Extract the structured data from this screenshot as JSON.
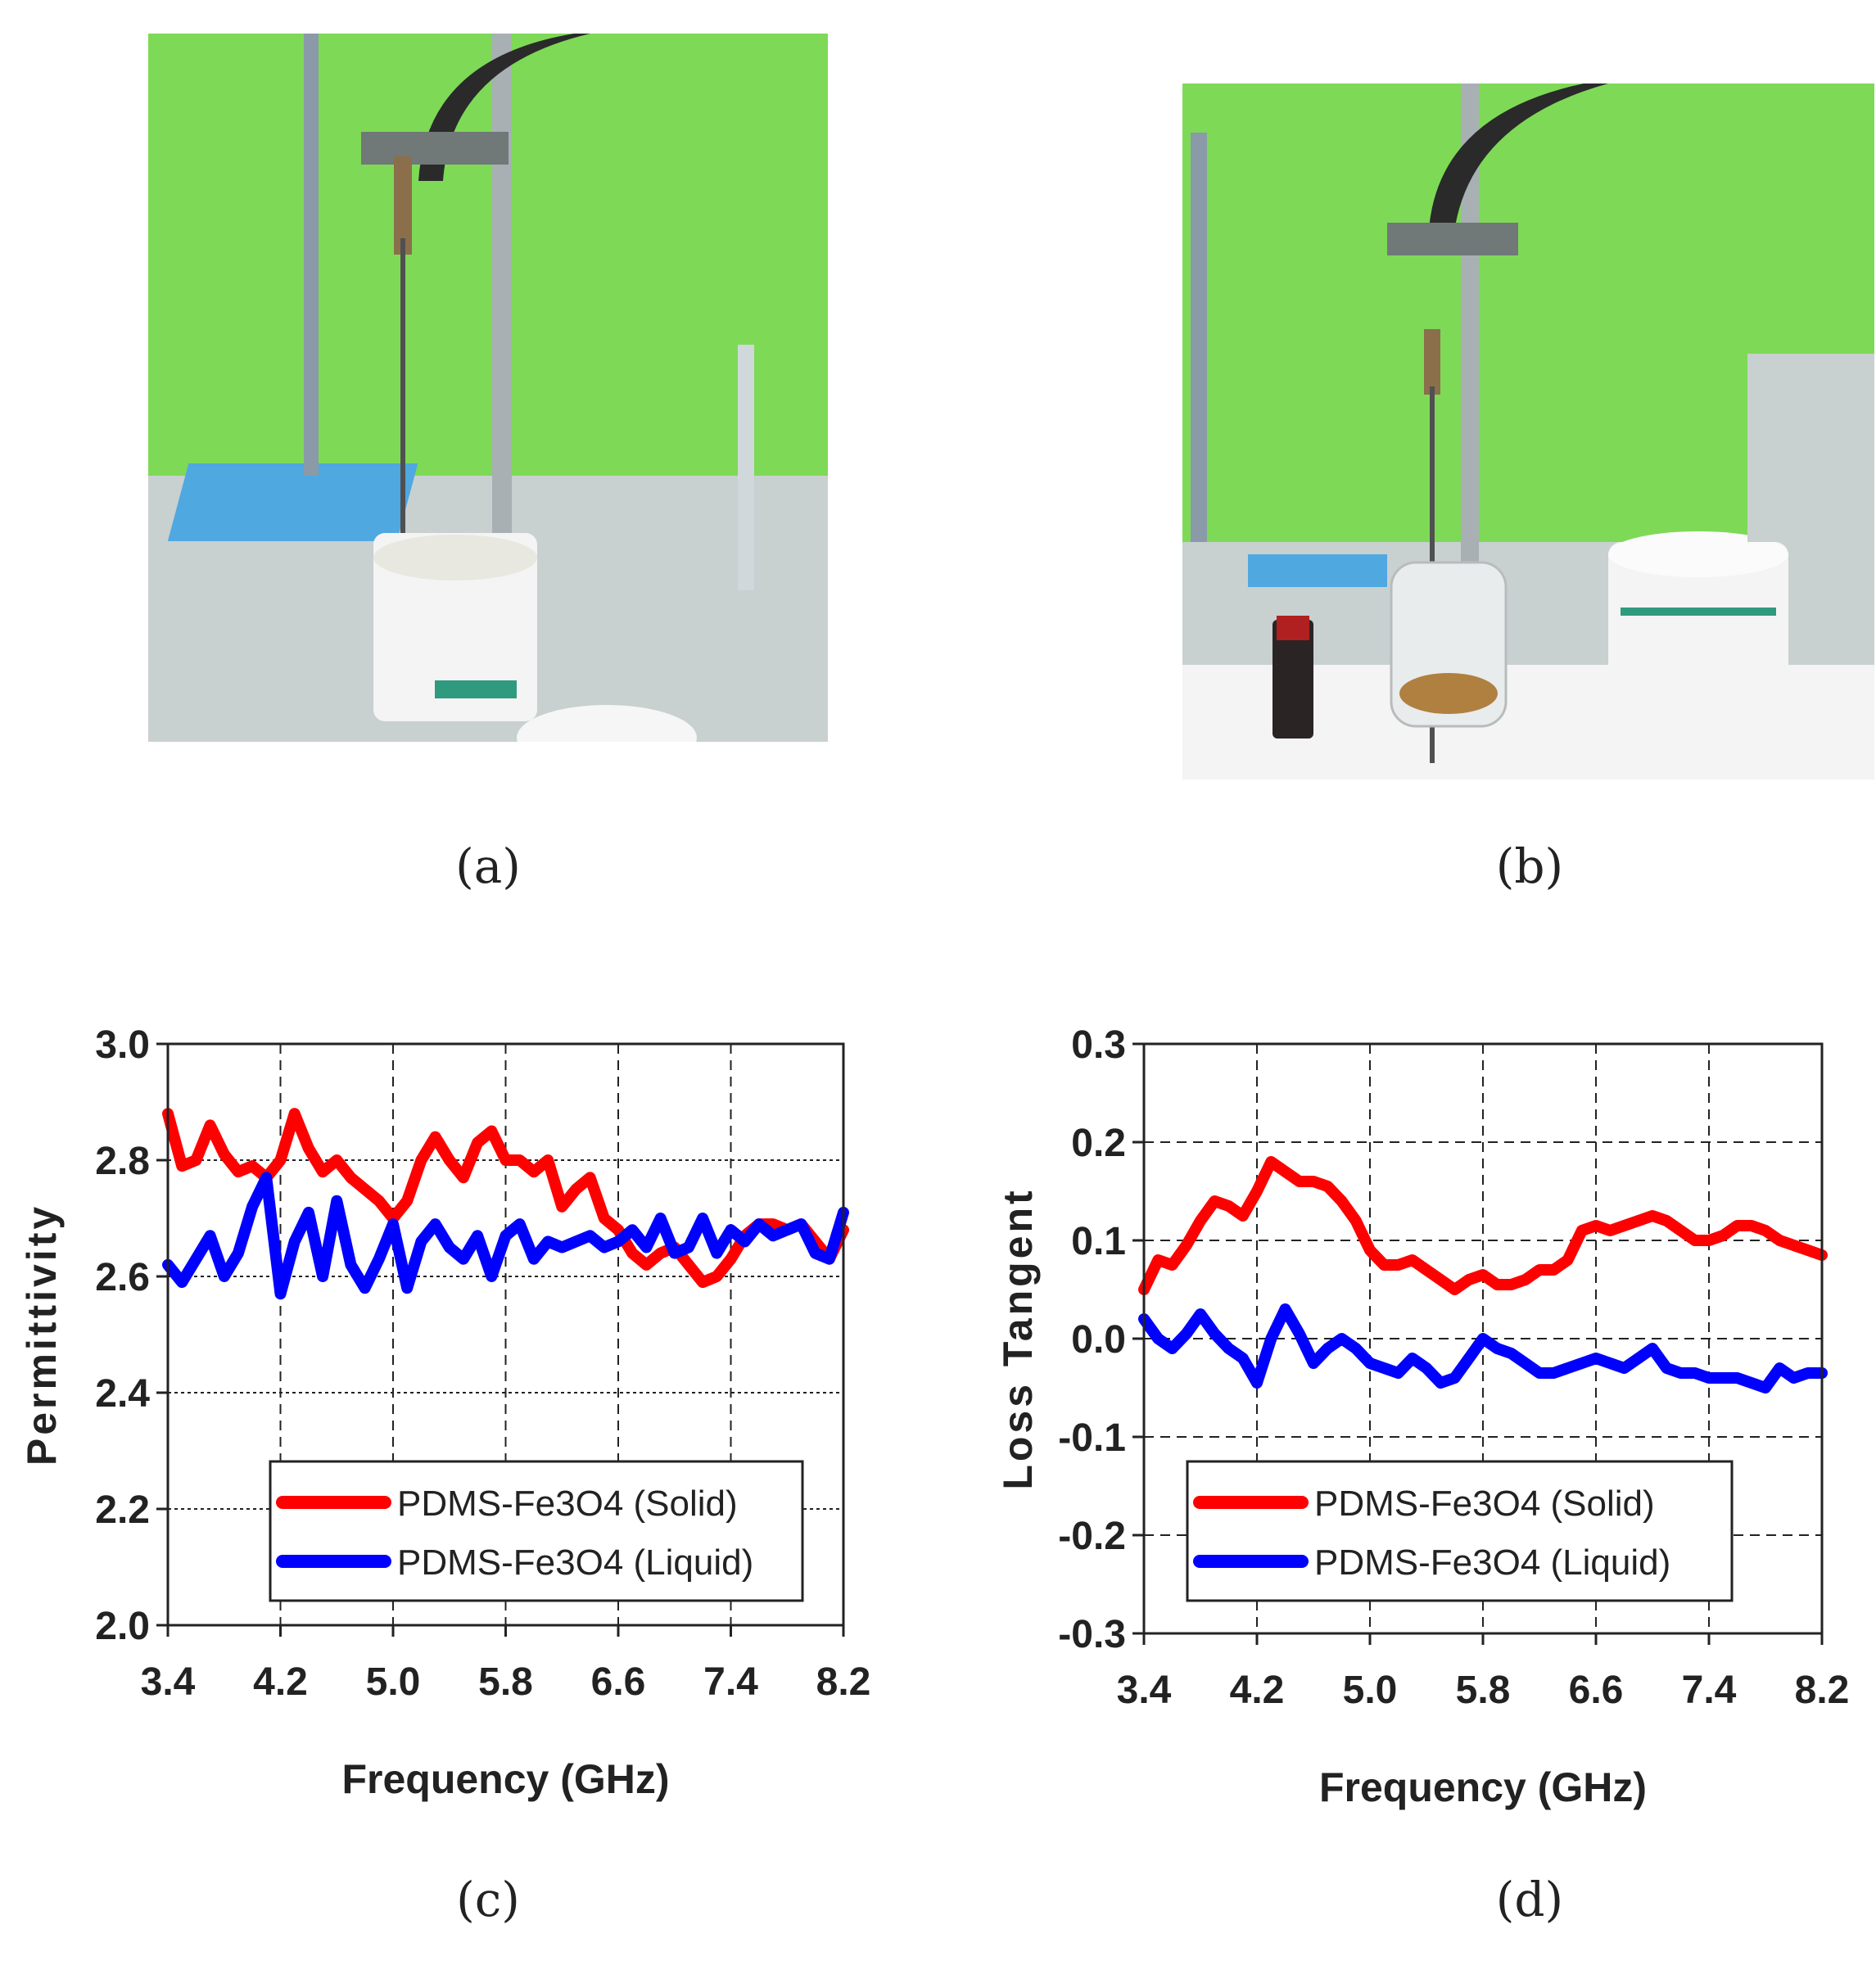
{
  "figure": {
    "panel_a": {
      "caption": "(a)",
      "photo": "Probe dipped into white PDMS-Fe3O4 solid sample jar on lab bench"
    },
    "panel_b": {
      "caption": "(b)",
      "photo": "Probe dipped into glass beaker with brown liquid, bottle and jar beside it"
    },
    "panel_c": {
      "caption": "(c)"
    },
    "panel_d": {
      "caption": "(d)"
    }
  },
  "colors": {
    "solid": "#ff0000",
    "liquid": "#0000ff",
    "wall": "#7ed957",
    "bench": "#c8d0d0"
  },
  "chart_data": [
    {
      "id": "permittivity",
      "type": "line",
      "xlabel": "Frequency (GHz)",
      "ylabel": "Permittivity",
      "xlim": [
        3.4,
        8.2
      ],
      "ylim": [
        2.0,
        3.0
      ],
      "xticks": [
        "3.4",
        "4.2",
        "5.0",
        "5.8",
        "6.6",
        "7.4",
        "8.2"
      ],
      "yticks": [
        "3.0",
        "2.8",
        "2.6",
        "2.4",
        "2.2",
        "2.0"
      ],
      "grid": true,
      "legend_position": "bottom-right",
      "series": [
        {
          "name": "PDMS-Fe3O4 (Solid)",
          "color": "#ff0000",
          "x": [
            3.4,
            3.5,
            3.6,
            3.7,
            3.8,
            3.9,
            4.0,
            4.1,
            4.2,
            4.3,
            4.4,
            4.5,
            4.6,
            4.7,
            4.8,
            4.9,
            5.0,
            5.1,
            5.2,
            5.3,
            5.4,
            5.5,
            5.6,
            5.7,
            5.8,
            5.9,
            6.0,
            6.1,
            6.2,
            6.3,
            6.4,
            6.5,
            6.6,
            6.7,
            6.8,
            6.9,
            7.0,
            7.1,
            7.2,
            7.3,
            7.4,
            7.5,
            7.6,
            7.7,
            7.8,
            7.9,
            8.0,
            8.1,
            8.2
          ],
          "y": [
            2.88,
            2.79,
            2.8,
            2.86,
            2.81,
            2.78,
            2.79,
            2.77,
            2.8,
            2.88,
            2.82,
            2.78,
            2.8,
            2.77,
            2.75,
            2.73,
            2.7,
            2.73,
            2.8,
            2.84,
            2.8,
            2.77,
            2.83,
            2.85,
            2.8,
            2.8,
            2.78,
            2.8,
            2.72,
            2.75,
            2.77,
            2.7,
            2.68,
            2.64,
            2.62,
            2.64,
            2.65,
            2.62,
            2.59,
            2.6,
            2.63,
            2.67,
            2.69,
            2.69,
            2.68,
            2.69,
            2.66,
            2.63,
            2.68
          ]
        },
        {
          "name": "PDMS-Fe3O4 (Liquid)",
          "color": "#0000ff",
          "x": [
            3.4,
            3.5,
            3.6,
            3.7,
            3.8,
            3.9,
            4.0,
            4.1,
            4.2,
            4.3,
            4.4,
            4.5,
            4.6,
            4.7,
            4.8,
            4.9,
            5.0,
            5.1,
            5.2,
            5.3,
            5.4,
            5.5,
            5.6,
            5.7,
            5.8,
            5.9,
            6.0,
            6.1,
            6.2,
            6.3,
            6.4,
            6.5,
            6.6,
            6.7,
            6.8,
            6.9,
            7.0,
            7.1,
            7.2,
            7.3,
            7.4,
            7.5,
            7.6,
            7.7,
            7.8,
            7.9,
            8.0,
            8.1,
            8.2
          ],
          "y": [
            2.62,
            2.59,
            2.63,
            2.67,
            2.6,
            2.64,
            2.72,
            2.77,
            2.57,
            2.66,
            2.71,
            2.6,
            2.73,
            2.62,
            2.58,
            2.63,
            2.69,
            2.58,
            2.66,
            2.69,
            2.65,
            2.63,
            2.67,
            2.6,
            2.67,
            2.69,
            2.63,
            2.66,
            2.65,
            2.66,
            2.67,
            2.65,
            2.66,
            2.68,
            2.65,
            2.7,
            2.64,
            2.65,
            2.7,
            2.64,
            2.68,
            2.66,
            2.69,
            2.67,
            2.68,
            2.69,
            2.64,
            2.63,
            2.71
          ]
        }
      ]
    },
    {
      "id": "loss-tangent",
      "type": "line",
      "xlabel": "Frequency (GHz)",
      "ylabel": "Loss Tangent",
      "xlim": [
        3.4,
        8.2
      ],
      "ylim": [
        -0.3,
        0.3
      ],
      "xticks": [
        "3.4",
        "4.2",
        "5.0",
        "5.8",
        "6.6",
        "7.4",
        "8.2"
      ],
      "yticks": [
        "0.3",
        "0.2",
        "0.1",
        "0.0",
        "-0.1",
        "-0.2",
        "-0.3"
      ],
      "grid": true,
      "legend_position": "bottom-right",
      "series": [
        {
          "name": "PDMS-Fe3O4  (Solid)",
          "color": "#ff0000",
          "x": [
            3.4,
            3.5,
            3.6,
            3.7,
            3.8,
            3.9,
            4.0,
            4.1,
            4.2,
            4.3,
            4.4,
            4.5,
            4.6,
            4.7,
            4.8,
            4.9,
            5.0,
            5.1,
            5.2,
            5.3,
            5.4,
            5.5,
            5.6,
            5.7,
            5.8,
            5.9,
            6.0,
            6.1,
            6.2,
            6.3,
            6.4,
            6.5,
            6.6,
            6.7,
            6.8,
            6.9,
            7.0,
            7.1,
            7.2,
            7.3,
            7.4,
            7.5,
            7.6,
            7.7,
            7.8,
            7.9,
            8.0,
            8.1,
            8.2
          ],
          "y": [
            0.05,
            0.08,
            0.075,
            0.095,
            0.12,
            0.14,
            0.135,
            0.125,
            0.15,
            0.18,
            0.17,
            0.16,
            0.16,
            0.155,
            0.14,
            0.12,
            0.09,
            0.075,
            0.075,
            0.08,
            0.07,
            0.06,
            0.05,
            0.06,
            0.065,
            0.055,
            0.055,
            0.06,
            0.07,
            0.07,
            0.08,
            0.11,
            0.115,
            0.11,
            0.115,
            0.12,
            0.125,
            0.12,
            0.11,
            0.1,
            0.1,
            0.105,
            0.115,
            0.115,
            0.11,
            0.1,
            0.095,
            0.09,
            0.085
          ]
        },
        {
          "name": "PDMS-Fe3O4 (Liquid)",
          "color": "#0000ff",
          "x": [
            3.4,
            3.5,
            3.6,
            3.7,
            3.8,
            3.9,
            4.0,
            4.1,
            4.2,
            4.3,
            4.4,
            4.5,
            4.6,
            4.7,
            4.8,
            4.9,
            5.0,
            5.1,
            5.2,
            5.3,
            5.4,
            5.5,
            5.6,
            5.7,
            5.8,
            5.9,
            6.0,
            6.1,
            6.2,
            6.3,
            6.4,
            6.5,
            6.6,
            6.7,
            6.8,
            6.9,
            7.0,
            7.1,
            7.2,
            7.3,
            7.4,
            7.5,
            7.6,
            7.7,
            7.8,
            7.9,
            8.0,
            8.1,
            8.2
          ],
          "y": [
            0.02,
            0.0,
            -0.01,
            0.005,
            0.025,
            0.005,
            -0.01,
            -0.02,
            -0.045,
            0.0,
            0.03,
            0.005,
            -0.025,
            -0.01,
            0.0,
            -0.01,
            -0.025,
            -0.03,
            -0.035,
            -0.02,
            -0.03,
            -0.045,
            -0.04,
            -0.02,
            0.0,
            -0.01,
            -0.015,
            -0.025,
            -0.035,
            -0.035,
            -0.03,
            -0.025,
            -0.02,
            -0.025,
            -0.03,
            -0.02,
            -0.01,
            -0.03,
            -0.035,
            -0.035,
            -0.04,
            -0.04,
            -0.04,
            -0.045,
            -0.05,
            -0.03,
            -0.04,
            -0.035,
            -0.035
          ]
        }
      ]
    }
  ]
}
